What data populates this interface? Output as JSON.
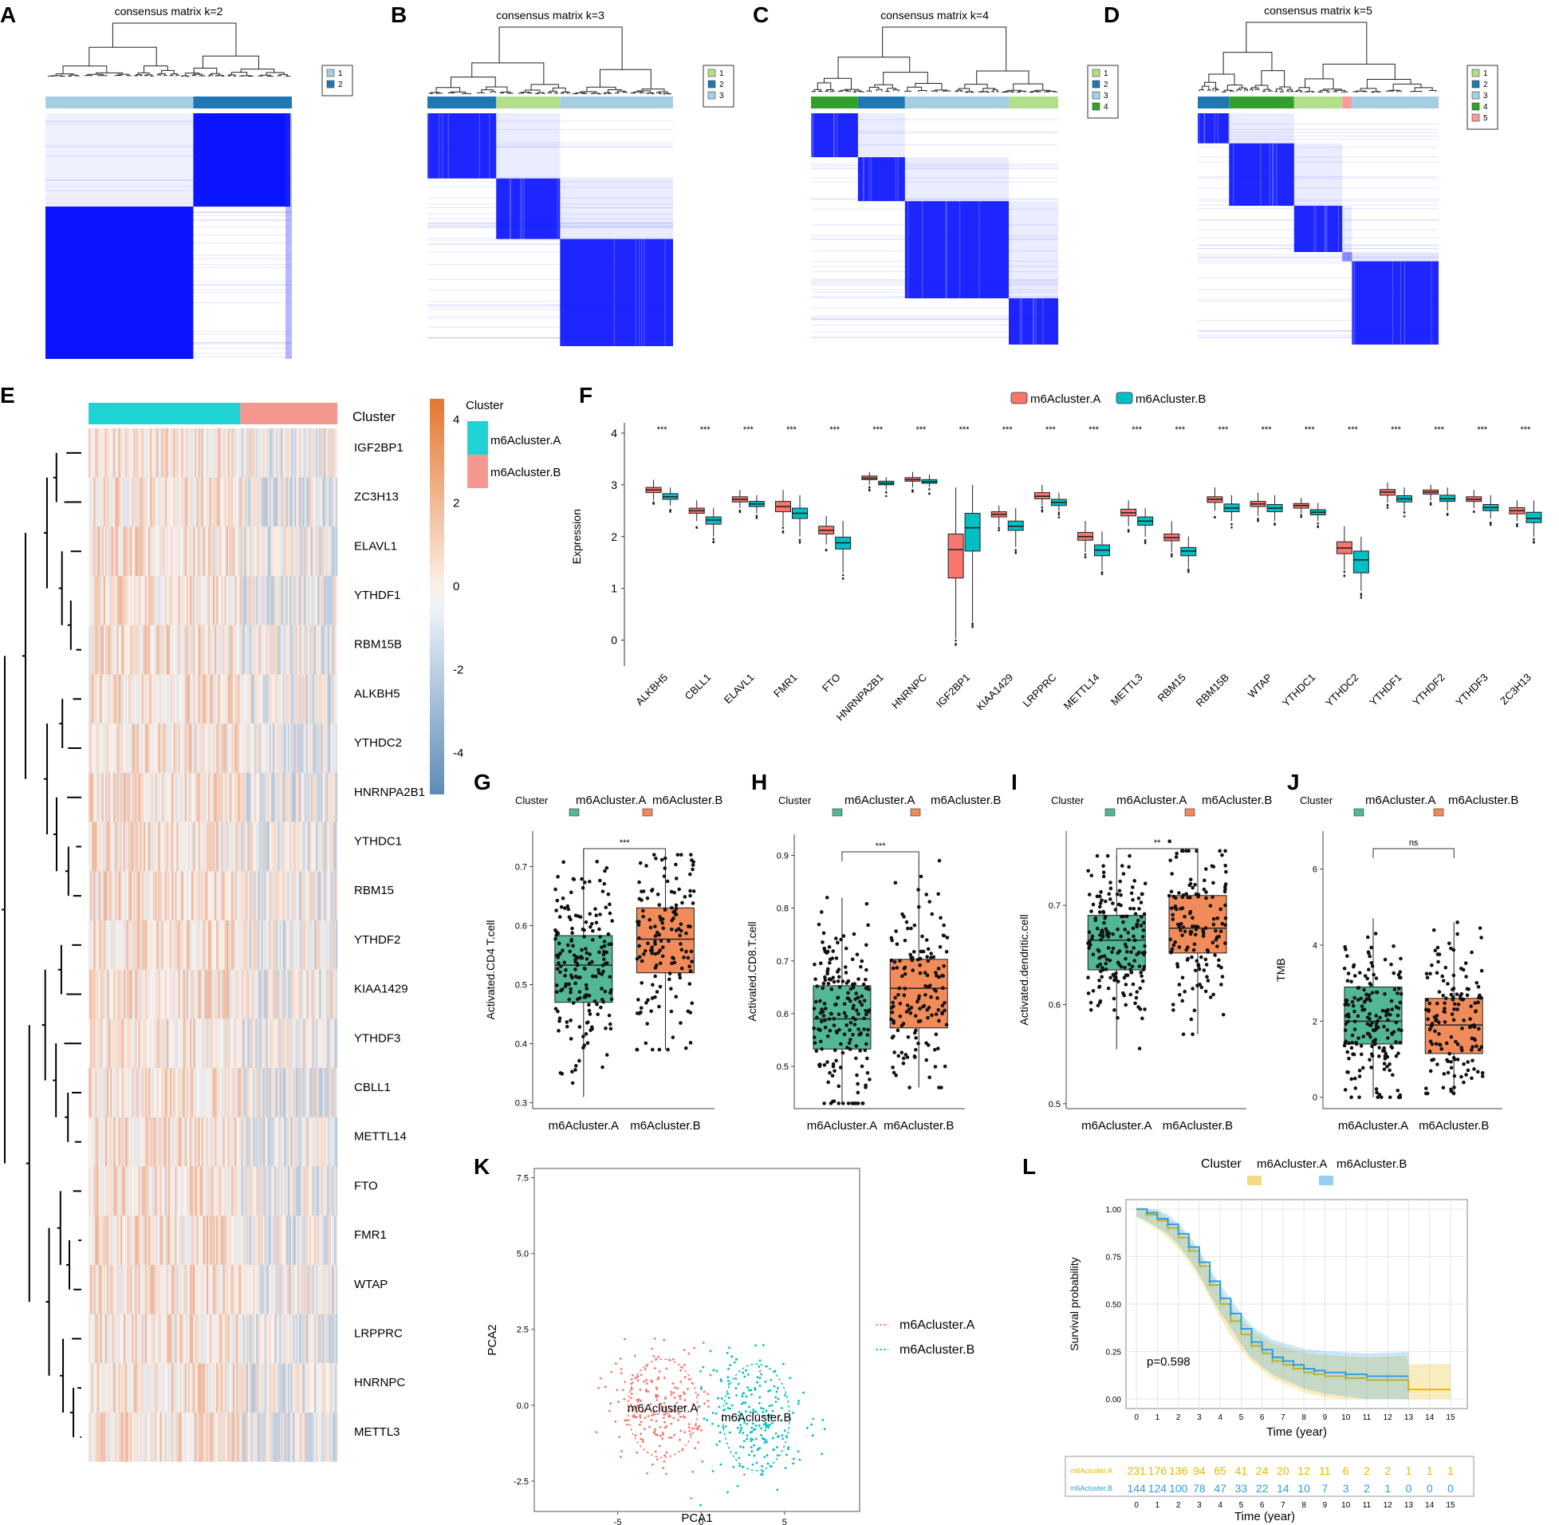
{
  "panel_letters": [
    "A",
    "B",
    "C",
    "D",
    "E",
    "F",
    "G",
    "H",
    "I",
    "J",
    "K",
    "L"
  ],
  "chart_data": [
    {
      "panel": "A",
      "type": "heatmap",
      "title": "consensus matrix k=2",
      "legend": [
        "1",
        "2"
      ],
      "legend_colors": [
        "#a6cee3",
        "#1f78b4"
      ],
      "block_order": [
        "1",
        "2"
      ],
      "block_sizes": [
        0.6,
        0.4
      ],
      "cluster_order_by_row": [
        2,
        1
      ],
      "row_block_sizes": [
        0.38,
        0.62
      ]
    },
    {
      "panel": "B",
      "type": "heatmap",
      "title": "consensus matrix k=3",
      "legend": [
        "1",
        "2",
        "3"
      ],
      "legend_colors": [
        "#b2df8a",
        "#1f78b4",
        "#a6cee3"
      ],
      "block_order": [
        "2",
        "1",
        "3"
      ],
      "block_sizes": [
        0.28,
        0.26,
        0.46
      ]
    },
    {
      "panel": "C",
      "type": "heatmap",
      "title": "consensus matrix k=4",
      "legend": [
        "1",
        "2",
        "3",
        "4"
      ],
      "legend_colors": [
        "#b2df8a",
        "#1f78b4",
        "#a6cee3",
        "#33a02c"
      ],
      "block_order": [
        "4",
        "2",
        "3",
        "1"
      ],
      "block_sizes": [
        0.19,
        0.19,
        0.42,
        0.2
      ]
    },
    {
      "panel": "D",
      "type": "heatmap",
      "title": "consensus matrix k=5",
      "legend": [
        "1",
        "2",
        "3",
        "4",
        "5"
      ],
      "legend_colors": [
        "#b2df8a",
        "#1f78b4",
        "#a6cee3",
        "#33a02c",
        "#fb9a99"
      ],
      "block_order": [
        "2",
        "4",
        "1",
        "5",
        "3"
      ],
      "block_sizes": [
        0.13,
        0.27,
        0.2,
        0.04,
        0.36
      ]
    },
    {
      "panel": "E",
      "type": "heatmap",
      "annotation_label": "Cluster",
      "legend_title": "Cluster",
      "legend_items": [
        "m6Acluster.A",
        "m6Acluster.B"
      ],
      "legend_colors": [
        "#1fd3d3",
        "#f4978e"
      ],
      "colorbar_ticks": [
        "4",
        "2",
        "0",
        "-2",
        "-4"
      ],
      "colorbar_range": [
        -5,
        4.5
      ],
      "rows": [
        "IGF2BP1",
        "ZC3H13",
        "ELAVL1",
        "YTHDF1",
        "RBM15B",
        "ALKBH5",
        "YTHDC2",
        "HNRNPA2B1",
        "YTHDC1",
        "RBM15",
        "YTHDF2",
        "KIAA1429",
        "YTHDF3",
        "CBLL1",
        "METTL14",
        "FTO",
        "FMR1",
        "WTAP",
        "LRPPRC",
        "HNRNPC",
        "METTL3"
      ],
      "cluster_split": [
        0.61,
        0.39
      ]
    },
    {
      "panel": "F",
      "type": "boxplot",
      "ylabel": "Expression",
      "ylim": [
        -0.5,
        4.2
      ],
      "yticks": [
        0,
        1,
        2,
        3,
        4
      ],
      "legend": [
        "m6Acluster.A",
        "m6Acluster.B"
      ],
      "colors": [
        "#f8766d",
        "#00bfc4"
      ],
      "significance": "***",
      "categories": [
        "ALKBH5",
        "CBLL1",
        "ELAVL1",
        "FMR1",
        "FTO",
        "HNRNPA2B1",
        "HNRNPC",
        "IGF2BP1",
        "KIAA1429",
        "LRPPRC",
        "METTL14",
        "METTL3",
        "RBM15",
        "RBM15B",
        "WTAP",
        "YTHDC1",
        "YTHDC2",
        "YTHDF1",
        "YTHDF2",
        "YTHDF3",
        "ZC3H13"
      ],
      "series": [
        {
          "name": "m6Acluster.A",
          "stats": [
            [
              2.7,
              2.85,
              2.9,
              2.95,
              3.1
            ],
            [
              2.3,
              2.45,
              2.5,
              2.55,
              2.7
            ],
            [
              2.55,
              2.67,
              2.72,
              2.77,
              2.9
            ],
            [
              2.2,
              2.48,
              2.58,
              2.68,
              2.9
            ],
            [
              1.85,
              2.05,
              2.12,
              2.2,
              2.4
            ],
            [
              3.0,
              3.1,
              3.13,
              3.17,
              3.25
            ],
            [
              2.95,
              3.07,
              3.1,
              3.14,
              3.25
            ],
            [
              0.03,
              1.2,
              1.75,
              2.05,
              2.95
            ],
            [
              2.2,
              2.38,
              2.43,
              2.48,
              2.6
            ],
            [
              2.6,
              2.73,
              2.78,
              2.85,
              3.0
            ],
            [
              1.7,
              1.93,
              2.0,
              2.08,
              2.3
            ],
            [
              2.2,
              2.4,
              2.46,
              2.53,
              2.7
            ],
            [
              1.7,
              1.92,
              1.98,
              2.05,
              2.3
            ],
            [
              2.5,
              2.66,
              2.72,
              2.77,
              2.95
            ],
            [
              2.4,
              2.58,
              2.63,
              2.68,
              2.85
            ],
            [
              2.45,
              2.55,
              2.6,
              2.64,
              2.75
            ],
            [
              1.35,
              1.67,
              1.78,
              1.9,
              2.2
            ],
            [
              2.65,
              2.8,
              2.86,
              2.91,
              3.05
            ],
            [
              2.7,
              2.82,
              2.86,
              2.9,
              3.0
            ],
            [
              2.55,
              2.68,
              2.72,
              2.77,
              2.9
            ],
            [
              2.3,
              2.44,
              2.5,
              2.56,
              2.7
            ]
          ]
        },
        {
          "name": "m6Acluster.B",
          "stats": [
            [
              2.6,
              2.72,
              2.77,
              2.83,
              2.95
            ],
            [
              2.0,
              2.24,
              2.32,
              2.38,
              2.55
            ],
            [
              2.45,
              2.58,
              2.63,
              2.68,
              2.8
            ],
            [
              2.0,
              2.35,
              2.45,
              2.55,
              2.8
            ],
            [
              1.3,
              1.76,
              1.88,
              1.99,
              2.3
            ],
            [
              2.9,
              3.0,
              3.03,
              3.07,
              3.15
            ],
            [
              2.95,
              3.03,
              3.06,
              3.1,
              3.2
            ],
            [
              0.35,
              1.72,
              2.17,
              2.45,
              3.0
            ],
            [
              1.8,
              2.12,
              2.2,
              2.3,
              2.55
            ],
            [
              2.5,
              2.6,
              2.66,
              2.72,
              2.85
            ],
            [
              1.35,
              1.63,
              1.74,
              1.84,
              2.1
            ],
            [
              2.0,
              2.22,
              2.3,
              2.38,
              2.55
            ],
            [
              1.4,
              1.63,
              1.72,
              1.79,
              2.0
            ],
            [
              2.3,
              2.48,
              2.55,
              2.63,
              2.8
            ],
            [
              2.3,
              2.48,
              2.55,
              2.62,
              2.8
            ],
            [
              2.3,
              2.42,
              2.47,
              2.52,
              2.65
            ],
            [
              0.95,
              1.3,
              1.55,
              1.72,
              2.0
            ],
            [
              2.5,
              2.67,
              2.73,
              2.79,
              2.95
            ],
            [
              2.5,
              2.68,
              2.73,
              2.8,
              2.95
            ],
            [
              2.35,
              2.5,
              2.56,
              2.62,
              2.8
            ],
            [
              2.0,
              2.27,
              2.35,
              2.47,
              2.7
            ]
          ]
        }
      ]
    },
    {
      "panel": "G",
      "type": "boxplot",
      "legend_title": "Cluster",
      "legend": [
        "m6Acluster.A",
        "m6Acluster.B"
      ],
      "colors": [
        "#52b794",
        "#f18b5a"
      ],
      "ylabel": "Activated.CD4 T.cell",
      "ylim": [
        0.29,
        0.76
      ],
      "yticks": [
        0.3,
        0.4,
        0.5,
        0.6,
        0.7
      ],
      "categories": [
        "m6Acluster.A",
        "m6Acluster.B"
      ],
      "stats": [
        [
          0.31,
          0.47,
          0.533,
          0.583,
          0.73
        ],
        [
          0.39,
          0.52,
          0.577,
          0.63,
          0.72
        ]
      ],
      "significance": "***"
    },
    {
      "panel": "H",
      "type": "boxplot",
      "legend_title": "Cluster",
      "legend": [
        "m6Acluster.A",
        "m6Acluster.B"
      ],
      "colors": [
        "#52b794",
        "#f18b5a"
      ],
      "ylabel": "Activated.CD8.T.cell",
      "ylim": [
        0.42,
        0.94
      ],
      "yticks": [
        0.5,
        0.6,
        0.7,
        0.8,
        0.9
      ],
      "categories": [
        "m6Acluster.A",
        "m6Acluster.B"
      ],
      "stats": [
        [
          0.43,
          0.533,
          0.59,
          0.653,
          0.82
        ],
        [
          0.46,
          0.573,
          0.648,
          0.703,
          0.89
        ]
      ],
      "significance": "***"
    },
    {
      "panel": "I",
      "type": "boxplot",
      "legend_title": "Cluster",
      "legend": [
        "m6Acluster.A",
        "m6Acluster.B"
      ],
      "colors": [
        "#52b794",
        "#f18b5a"
      ],
      "ylabel": "Activated.dendritic.cell",
      "ylim": [
        0.495,
        0.775
      ],
      "yticks": [
        0.5,
        0.6,
        0.7
      ],
      "categories": [
        "m6Acluster.A",
        "m6Acluster.B"
      ],
      "stats": [
        [
          0.555,
          0.635,
          0.665,
          0.69,
          0.75
        ],
        [
          0.57,
          0.652,
          0.677,
          0.71,
          0.755
        ]
      ],
      "significance": "**"
    },
    {
      "panel": "J",
      "type": "boxplot",
      "legend_title": "Cluster",
      "legend": [
        "m6Acluster.A",
        "m6Acluster.B"
      ],
      "colors": [
        "#52b794",
        "#f18b5a"
      ],
      "ylabel": "TMB",
      "ylim": [
        -0.3,
        7.0
      ],
      "yticks": [
        0,
        2,
        4,
        6
      ],
      "categories": [
        "m6Acluster.A",
        "m6Acluster.B"
      ],
      "stats": [
        [
          0.0,
          1.4,
          2.0,
          2.9,
          4.7
        ],
        [
          0.1,
          1.15,
          1.9,
          2.6,
          4.6
        ]
      ],
      "significance": "ns"
    },
    {
      "panel": "K",
      "type": "scatter",
      "xlabel": "PCA1",
      "ylabel": "PCA2",
      "xlim": [
        -10,
        9.5
      ],
      "ylim": [
        -3.5,
        7.8
      ],
      "xticks": [
        -5,
        0,
        5
      ],
      "yticks": [
        -2.5,
        0.0,
        2.5,
        5.0,
        7.5
      ],
      "series": [
        {
          "name": "m6Acluster.A",
          "color": "#f8766d",
          "center": [
            -2.3,
            -0.1
          ],
          "spread": [
            2.2,
            1.2
          ]
        },
        {
          "name": "m6Acluster.B",
          "color": "#00bfc4",
          "center": [
            3.3,
            -0.4
          ],
          "spread": [
            2.1,
            1.3
          ]
        }
      ],
      "labels": [
        "m6Acluster.A",
        "m6Acluster.B"
      ]
    },
    {
      "panel": "L",
      "type": "line",
      "legend_title": "Cluster",
      "legend": [
        "m6Acluster.A",
        "m6Acluster.B"
      ],
      "colors": [
        "#e7b800",
        "#2e9fdf"
      ],
      "xlabel": "Time (year)",
      "ylabel": "Survival probability",
      "xlim": [
        -0.5,
        15.8
      ],
      "ylim": [
        -0.05,
        1.05
      ],
      "xticks": [
        0,
        1,
        2,
        3,
        4,
        5,
        6,
        7,
        8,
        9,
        10,
        11,
        12,
        13,
        14,
        15
      ],
      "yticks": [
        "0.00",
        "0.25",
        "0.50",
        "0.75",
        "1.00"
      ],
      "annotation": "p=0.598",
      "series": [
        {
          "name": "m6Acluster.A",
          "x": [
            0,
            0.5,
            1,
            1.5,
            2,
            2.5,
            3,
            3.5,
            4,
            4.5,
            5,
            5.5,
            6,
            6.5,
            7,
            7.5,
            8,
            8.5,
            9,
            10,
            11,
            12,
            12.9,
            13,
            15
          ],
          "y": [
            1,
            0.97,
            0.94,
            0.9,
            0.85,
            0.78,
            0.7,
            0.6,
            0.5,
            0.41,
            0.34,
            0.28,
            0.24,
            0.2,
            0.18,
            0.16,
            0.14,
            0.13,
            0.12,
            0.11,
            0.1,
            0.1,
            0.1,
            0.05,
            0.05
          ]
        },
        {
          "name": "m6Acluster.B",
          "x": [
            0,
            0.5,
            1,
            1.5,
            2,
            2.5,
            3,
            3.5,
            4,
            4.5,
            5,
            5.5,
            6,
            6.5,
            7,
            7.5,
            8,
            8.5,
            9,
            10,
            11,
            12,
            13
          ],
          "y": [
            1,
            0.98,
            0.95,
            0.92,
            0.87,
            0.8,
            0.72,
            0.62,
            0.53,
            0.45,
            0.37,
            0.3,
            0.26,
            0.22,
            0.2,
            0.18,
            0.16,
            0.15,
            0.14,
            0.13,
            0.12,
            0.12,
            0.12
          ]
        }
      ],
      "risk_table": {
        "xlabel": "Time (year)",
        "rows": [
          {
            "name": "m6Acluster.A",
            "values": [
              "231",
              "176",
              "136",
              "94",
              "65",
              "41",
              "24",
              "20",
              "12",
              "11",
              "6",
              "2",
              "2",
              "1",
              "1",
              "1"
            ]
          },
          {
            "name": "m6Acluster.B",
            "values": [
              "144",
              "124",
              "100",
              "78",
              "47",
              "33",
              "22",
              "14",
              "10",
              "7",
              "3",
              "2",
              "1",
              "0",
              "0",
              "0"
            ]
          }
        ]
      }
    }
  ]
}
